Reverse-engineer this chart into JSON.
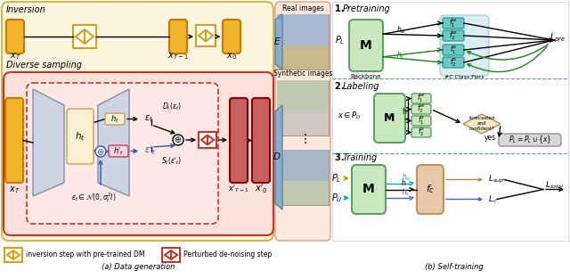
{
  "bg_left_color": "#fdf5e0",
  "bg_left_edge": "#d4b84a",
  "gold_color": "#f0b429",
  "gold_edge": "#c47a00",
  "inversion_step_edge": "#d4a017",
  "diverse_bg": "#fce0dc",
  "diverse_edge": "#c0392b",
  "inner_box_color": "#fce8e4",
  "red_box_color": "#c96060",
  "red_box_edge": "#8b0000",
  "trap_color": "#cdd5e5",
  "trap_edge": "#8090a0",
  "ht_box_color": "#f8f0d0",
  "ht_box_edge": "#c0a060",
  "ht2_box_color": "#f8d0e0",
  "ht2_box_edge": "#c04060",
  "oplus_edge": "#000000",
  "oplus2_edge": "#3050b0",
  "epsilon2_color": "#3050b0",
  "noise_label": "$\\epsilon_t \\in \\mathcal{N}(0, \\sigma_t^2 I)$",
  "mid_bg": "#fce8dc",
  "mid_edge": "#e0a080",
  "arrow_E_color": "#8aadcf",
  "arrow_D_color": "#8aadcf",
  "right_bg": "#ffffff",
  "right_edge": "#cccccc",
  "green_M": "#c8e8c0",
  "green_M_edge": "#60a060",
  "teal_f": "#6ec8c8",
  "teal_f_edge": "#30a0a0",
  "fc_box": "#e8c8a8",
  "fc_box_edge": "#c09060",
  "diamond_fill": "#f5e6c8",
  "diamond_edge": "#b09050",
  "gray_result": "#d8d8d8",
  "gray_result_edge": "#909090",
  "green_f_labeling": "#c8e8c0",
  "green_f_labeling_edge": "#60a060",
  "sep_line_color": "#6090c0",
  "legend_box1_edge": "#d4a017",
  "legend_box2_edge": "#c0392b",
  "caption_left": "(a) Data generation",
  "caption_right": "(b) Self-training",
  "legend1": "inversion step with pre-trained DM",
  "legend2": "Perturbed de-noising step"
}
